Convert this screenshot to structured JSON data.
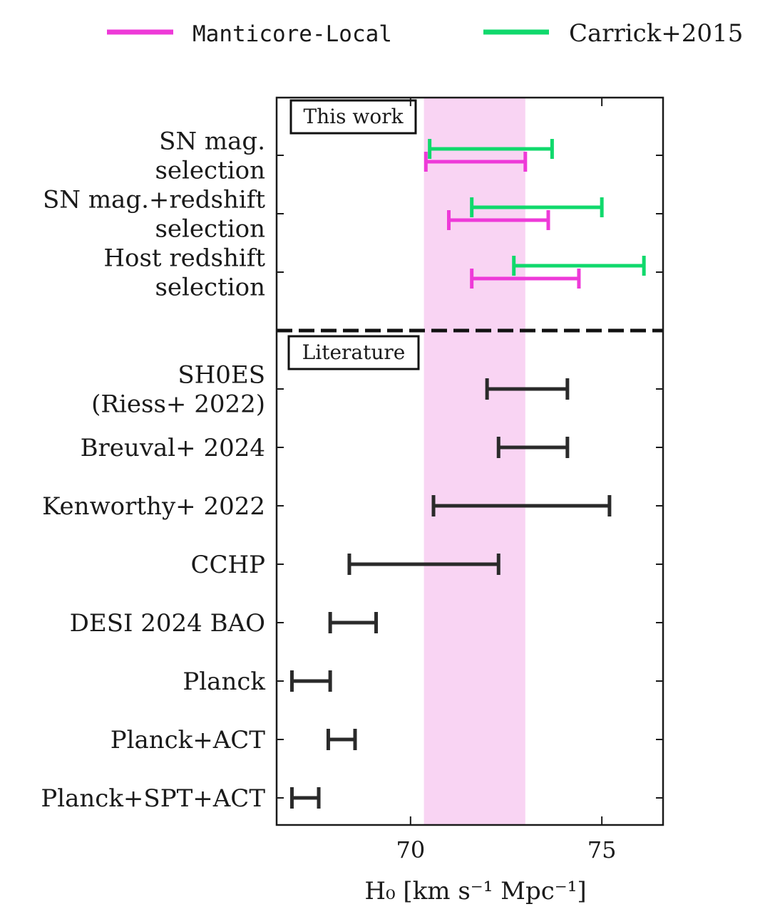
{
  "chart_data": {
    "type": "errorbar",
    "xlabel": "H₀ [km s⁻¹ Mpc⁻¹]",
    "xlim": [
      66.5,
      76.6
    ],
    "xticks": [
      70,
      75
    ],
    "grid": false,
    "legend": {
      "placement": "top",
      "entries": [
        {
          "name": "Manticore-Local",
          "color": "#ee3ad8",
          "font": "mono"
        },
        {
          "name": "Carrick+2015",
          "color": "#10d96c",
          "font": "serif"
        }
      ]
    },
    "band": {
      "xmin": 70.35,
      "xmax": 73.0,
      "color": "#f9d4f3"
    },
    "sections": [
      {
        "tag": "This work",
        "rows": [
          {
            "label": [
              "SN mag.",
              "selection"
            ],
            "bars": [
              {
                "series": "Carrick+2015",
                "low": 70.5,
                "high": 73.7
              },
              {
                "series": "Manticore-Local",
                "low": 70.4,
                "high": 73.0
              }
            ]
          },
          {
            "label": [
              "SN mag.+redshift",
              "selection"
            ],
            "bars": [
              {
                "series": "Carrick+2015",
                "low": 71.6,
                "high": 75.0
              },
              {
                "series": "Manticore-Local",
                "low": 71.0,
                "high": 73.6
              }
            ]
          },
          {
            "label": [
              "Host redshift",
              "selection"
            ],
            "bars": [
              {
                "series": "Carrick+2015",
                "low": 72.7,
                "high": 76.1
              },
              {
                "series": "Manticore-Local",
                "low": 71.6,
                "high": 74.4
              }
            ]
          }
        ]
      },
      {
        "tag": "Literature",
        "rows": [
          {
            "label": [
              "SH0ES",
              "(Riess+ 2022)"
            ],
            "bars": [
              {
                "series": "literature",
                "low": 72.0,
                "high": 74.1
              }
            ]
          },
          {
            "label": [
              "Breuval+ 2024"
            ],
            "bars": [
              {
                "series": "literature",
                "low": 72.3,
                "high": 74.1
              }
            ]
          },
          {
            "label": [
              "Kenworthy+ 2022"
            ],
            "bars": [
              {
                "series": "literature",
                "low": 70.6,
                "high": 75.2
              }
            ]
          },
          {
            "label": [
              "CCHP"
            ],
            "bars": [
              {
                "series": "literature",
                "low": 68.4,
                "high": 72.3
              }
            ]
          },
          {
            "label": [
              "DESI 2024 BAO"
            ],
            "bars": [
              {
                "series": "literature",
                "low": 67.9,
                "high": 69.1
              }
            ]
          },
          {
            "label": [
              "Planck"
            ],
            "bars": [
              {
                "series": "literature",
                "low": 66.9,
                "high": 67.9
              }
            ]
          },
          {
            "label": [
              "Planck+ACT"
            ],
            "bars": [
              {
                "series": "literature",
                "low": 67.85,
                "high": 68.55
              }
            ]
          },
          {
            "label": [
              "Planck+SPT+ACT"
            ],
            "bars": [
              {
                "series": "literature",
                "low": 66.9,
                "high": 67.6
              }
            ]
          }
        ]
      }
    ],
    "colors": {
      "literature": "#2a2a2a"
    }
  }
}
